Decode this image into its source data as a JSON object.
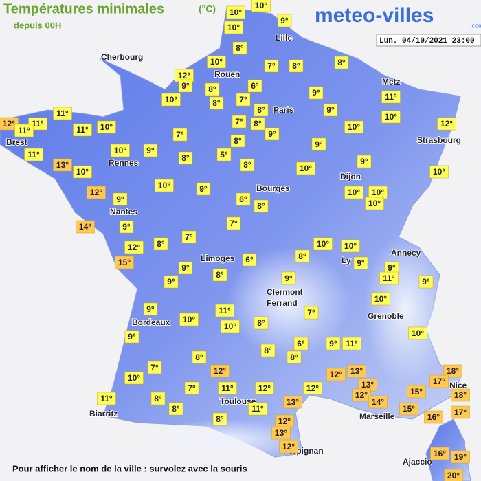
{
  "header": {
    "title": "Températures minimales",
    "unit": "(°C)",
    "subtitle": "depuis 00H",
    "logo": "meteo-villes",
    "logo_suffix": ".com",
    "date": "Lun. 04/10/2021 23:00"
  },
  "footer": "Pour afficher le nom de la ville : survolez avec la souris",
  "cities": [
    "Cherbourg",
    "Rouen",
    "Lille",
    "Metz",
    "Paris",
    "Strasbourg",
    "Brest",
    "Rennes",
    "Nantes",
    "Bourges",
    "Dijon",
    "Annecy",
    "Ly",
    "Limoges",
    "Clermont",
    "Ferrand",
    "Grenoble",
    "Bordeaux",
    "Toulouse",
    "Biarritz",
    "Marseille",
    "Nice",
    "Perpignan",
    "Ajaccio"
  ],
  "markers": [
    {
      "label": "10°",
      "color": "#ffff55"
    },
    {
      "label": "10°",
      "color": "#ffff55"
    },
    {
      "label": "9°",
      "color": "#ffff55"
    },
    {
      "label": "10°",
      "color": "#ffff55"
    },
    {
      "label": "8°",
      "color": "#ffff55"
    },
    {
      "label": "7°",
      "color": "#ffff55"
    },
    {
      "label": "8°",
      "color": "#ffff55"
    },
    {
      "label": "8°",
      "color": "#ffff55"
    },
    {
      "label": "10°",
      "color": "#ffff55"
    },
    {
      "label": "12°",
      "color": "#ffff55"
    },
    {
      "label": "9°",
      "color": "#ffff55"
    },
    {
      "label": "8°",
      "color": "#ffff55"
    },
    {
      "label": "6°",
      "color": "#ffff55"
    },
    {
      "label": "10°",
      "color": "#ffff55"
    },
    {
      "label": "8°",
      "color": "#ffff55"
    },
    {
      "label": "7°",
      "color": "#ffff55"
    },
    {
      "label": "8°",
      "color": "#ffff55"
    },
    {
      "label": "9°",
      "color": "#ffff55"
    },
    {
      "label": "9°",
      "color": "#ffff55"
    },
    {
      "label": "11°",
      "color": "#ffff55"
    },
    {
      "label": "10°",
      "color": "#ffff55"
    },
    {
      "label": "12°",
      "color": "#ffff55"
    },
    {
      "label": "10°",
      "color": "#ffff55"
    },
    {
      "label": "7°",
      "color": "#ffff55"
    },
    {
      "label": "8°",
      "color": "#ffff55"
    },
    {
      "label": "9°",
      "color": "#ffff55"
    },
    {
      "label": "7°",
      "color": "#ffff55"
    },
    {
      "label": "8°",
      "color": "#ffff55"
    },
    {
      "label": "9°",
      "color": "#ffff55"
    },
    {
      "label": "11°",
      "color": "#ffff55"
    },
    {
      "label": "12°",
      "color": "#ffc850"
    },
    {
      "label": "11°",
      "color": "#ffff55"
    },
    {
      "label": "11°",
      "color": "#ffff55"
    },
    {
      "label": "11°",
      "color": "#ffff55"
    },
    {
      "label": "10°",
      "color": "#ffff55"
    },
    {
      "label": "11°",
      "color": "#ffff55"
    },
    {
      "label": "13°",
      "color": "#ffc850"
    },
    {
      "label": "10°",
      "color": "#ffff55"
    },
    {
      "label": "10°",
      "color": "#ffff55"
    },
    {
      "label": "9°",
      "color": "#ffff55"
    },
    {
      "label": "8°",
      "color": "#ffff55"
    },
    {
      "label": "5°",
      "color": "#ffff55"
    },
    {
      "label": "8°",
      "color": "#ffff55"
    },
    {
      "label": "10°",
      "color": "#ffff55"
    },
    {
      "label": "9°",
      "color": "#ffff55"
    },
    {
      "label": "10°",
      "color": "#ffff55"
    },
    {
      "label": "12°",
      "color": "#ffc850"
    },
    {
      "label": "9°",
      "color": "#ffff55"
    },
    {
      "label": "10°",
      "color": "#ffff55"
    },
    {
      "label": "9°",
      "color": "#ffff55"
    },
    {
      "label": "6°",
      "color": "#ffff55"
    },
    {
      "label": "8°",
      "color": "#ffff55"
    },
    {
      "label": "10°",
      "color": "#ffff55"
    },
    {
      "label": "10°",
      "color": "#ffff55"
    },
    {
      "label": "10°",
      "color": "#ffff55"
    },
    {
      "label": "14°",
      "color": "#ffc850"
    },
    {
      "label": "9°",
      "color": "#ffff55"
    },
    {
      "label": "7°",
      "color": "#ffff55"
    },
    {
      "label": "12°",
      "color": "#ffff55"
    },
    {
      "label": "8°",
      "color": "#ffff55"
    },
    {
      "label": "7°",
      "color": "#ffff55"
    },
    {
      "label": "15°",
      "color": "#ffc850"
    },
    {
      "label": "9°",
      "color": "#ffff55"
    },
    {
      "label": "6°",
      "color": "#ffff55"
    },
    {
      "label": "8°",
      "color": "#ffff55"
    },
    {
      "label": "10°",
      "color": "#ffff55"
    },
    {
      "label": "10°",
      "color": "#ffff55"
    },
    {
      "label": "9°",
      "color": "#ffff55"
    },
    {
      "label": "9°",
      "color": "#ffff55"
    },
    {
      "label": "11°",
      "color": "#ffff55"
    },
    {
      "label": "9°",
      "color": "#ffff55"
    },
    {
      "label": "9°",
      "color": "#ffff55"
    },
    {
      "label": "8°",
      "color": "#ffff55"
    },
    {
      "label": "9°",
      "color": "#ffff55"
    },
    {
      "label": "10°",
      "color": "#ffff55"
    },
    {
      "label": "9°",
      "color": "#ffff55"
    },
    {
      "label": "11°",
      "color": "#ffff55"
    },
    {
      "label": "10°",
      "color": "#ffff55"
    },
    {
      "label": "10°",
      "color": "#ffff55"
    },
    {
      "label": "7°",
      "color": "#ffff55"
    },
    {
      "label": "8°",
      "color": "#ffff55"
    },
    {
      "label": "9°",
      "color": "#ffff55"
    },
    {
      "label": "8°",
      "color": "#ffff55"
    },
    {
      "label": "8°",
      "color": "#ffff55"
    },
    {
      "label": "6°",
      "color": "#ffff55"
    },
    {
      "label": "8°",
      "color": "#ffff55"
    },
    {
      "label": "9°",
      "color": "#ffff55"
    },
    {
      "label": "11°",
      "color": "#ffff55"
    },
    {
      "label": "10°",
      "color": "#ffff55"
    },
    {
      "label": "7°",
      "color": "#ffff55"
    },
    {
      "label": "10°",
      "color": "#ffff55"
    },
    {
      "label": "12°",
      "color": "#ffc850"
    },
    {
      "label": "13°",
      "color": "#ffc850"
    },
    {
      "label": "12°",
      "color": "#ffc850"
    },
    {
      "label": "7°",
      "color": "#ffff55"
    },
    {
      "label": "11°",
      "color": "#ffff55"
    },
    {
      "label": "12°",
      "color": "#ffff55"
    },
    {
      "label": "12°",
      "color": "#ffff55"
    },
    {
      "label": "13°",
      "color": "#ffc850"
    },
    {
      "label": "12°",
      "color": "#ffc850"
    },
    {
      "label": "14°",
      "color": "#ffc850"
    },
    {
      "label": "15°",
      "color": "#ffc850"
    },
    {
      "label": "18°",
      "color": "#ffc850"
    },
    {
      "label": "17°",
      "color": "#ffc850"
    },
    {
      "label": "18°",
      "color": "#ffc850"
    },
    {
      "label": "11°",
      "color": "#ffff55"
    },
    {
      "label": "8°",
      "color": "#ffff55"
    },
    {
      "label": "8°",
      "color": "#ffff55"
    },
    {
      "label": "13°",
      "color": "#ffc850"
    },
    {
      "label": "15°",
      "color": "#ffc850"
    },
    {
      "label": "17°",
      "color": "#ffc850"
    },
    {
      "label": "16°",
      "color": "#ffc850"
    },
    {
      "label": "11°",
      "color": "#ffff55"
    },
    {
      "label": "8°",
      "color": "#ffff55"
    },
    {
      "label": "12°",
      "color": "#ffc850"
    },
    {
      "label": "13°",
      "color": "#ffc850"
    },
    {
      "label": "12°",
      "color": "#ffc850"
    },
    {
      "label": "16°",
      "color": "#ffc850"
    },
    {
      "label": "19°",
      "color": "#ffc850"
    },
    {
      "label": "20°",
      "color": "#ffc850"
    }
  ]
}
